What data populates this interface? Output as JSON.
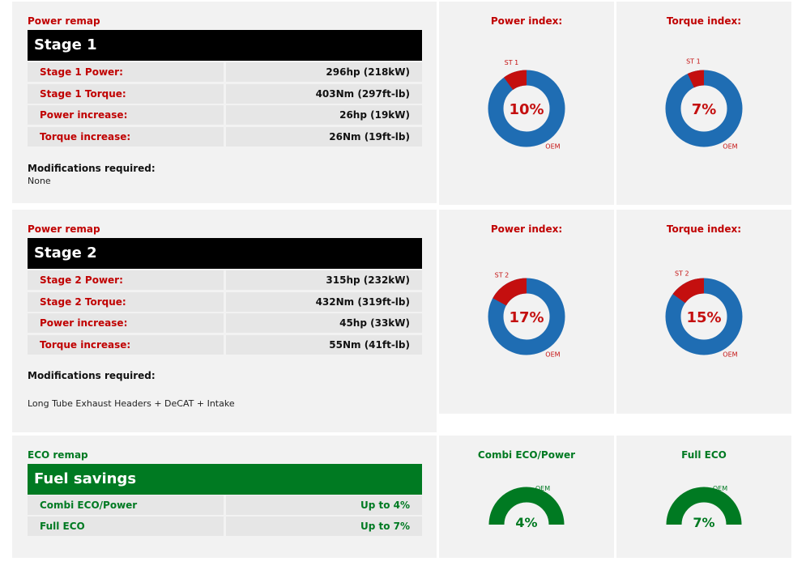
{
  "stage1": {
    "section_label": "Power remap",
    "title": "Stage 1",
    "rows": [
      {
        "label": "Stage 1 Power:",
        "value": "296hp (218kW)"
      },
      {
        "label": "Stage 1 Torque:",
        "value": "403Nm (297ft-lb)"
      },
      {
        "label": "Power increase:",
        "value": "26hp (19kW)"
      },
      {
        "label": "Torque increase:",
        "value": "26Nm (19ft-lb)"
      }
    ],
    "mods_label": "Modifications required:",
    "mods_value": "None",
    "power_chart": {
      "title": "Power index:",
      "percent": 10,
      "center_label": "10%",
      "tag": "ST 1",
      "base_tag": "OEM"
    },
    "torque_chart": {
      "title": "Torque index:",
      "percent": 7,
      "center_label": "7%",
      "tag": "ST 1",
      "base_tag": "OEM"
    }
  },
  "stage2": {
    "section_label": "Power remap",
    "title": "Stage 2",
    "rows": [
      {
        "label": "Stage 2 Power:",
        "value": "315hp (232kW)"
      },
      {
        "label": "Stage 2 Torque:",
        "value": "432Nm (319ft-lb)"
      },
      {
        "label": "Power increase:",
        "value": "45hp (33kW)"
      },
      {
        "label": "Torque increase:",
        "value": "55Nm (41ft-lb)"
      }
    ],
    "mods_label": "Modifications required:",
    "mods_value": "Long Tube Exhaust Headers + DeCAT + Intake",
    "power_chart": {
      "title": "Power index:",
      "percent": 17,
      "center_label": "17%",
      "tag": "ST 2",
      "base_tag": "OEM"
    },
    "torque_chart": {
      "title": "Torque index:",
      "percent": 15,
      "center_label": "15%",
      "tag": "ST 2",
      "base_tag": "OEM"
    }
  },
  "eco": {
    "section_label": "ECO remap",
    "title": "Fuel savings",
    "rows": [
      {
        "label": "Combi ECO/Power",
        "value": "Up to 4%"
      },
      {
        "label": "Full ECO",
        "value": "Up to 7%"
      }
    ],
    "combi_chart": {
      "title": "Combi ECO/Power",
      "percent": 4,
      "center_label": "4%",
      "base_tag": "OEM"
    },
    "full_chart": {
      "title": "Full ECO",
      "percent": 7,
      "center_label": "7%",
      "base_tag": "OEM"
    }
  },
  "colors": {
    "red": "#c40f0f",
    "blue": "#1f6db3",
    "green": "#007a22",
    "panel": "#f2f2f2"
  }
}
